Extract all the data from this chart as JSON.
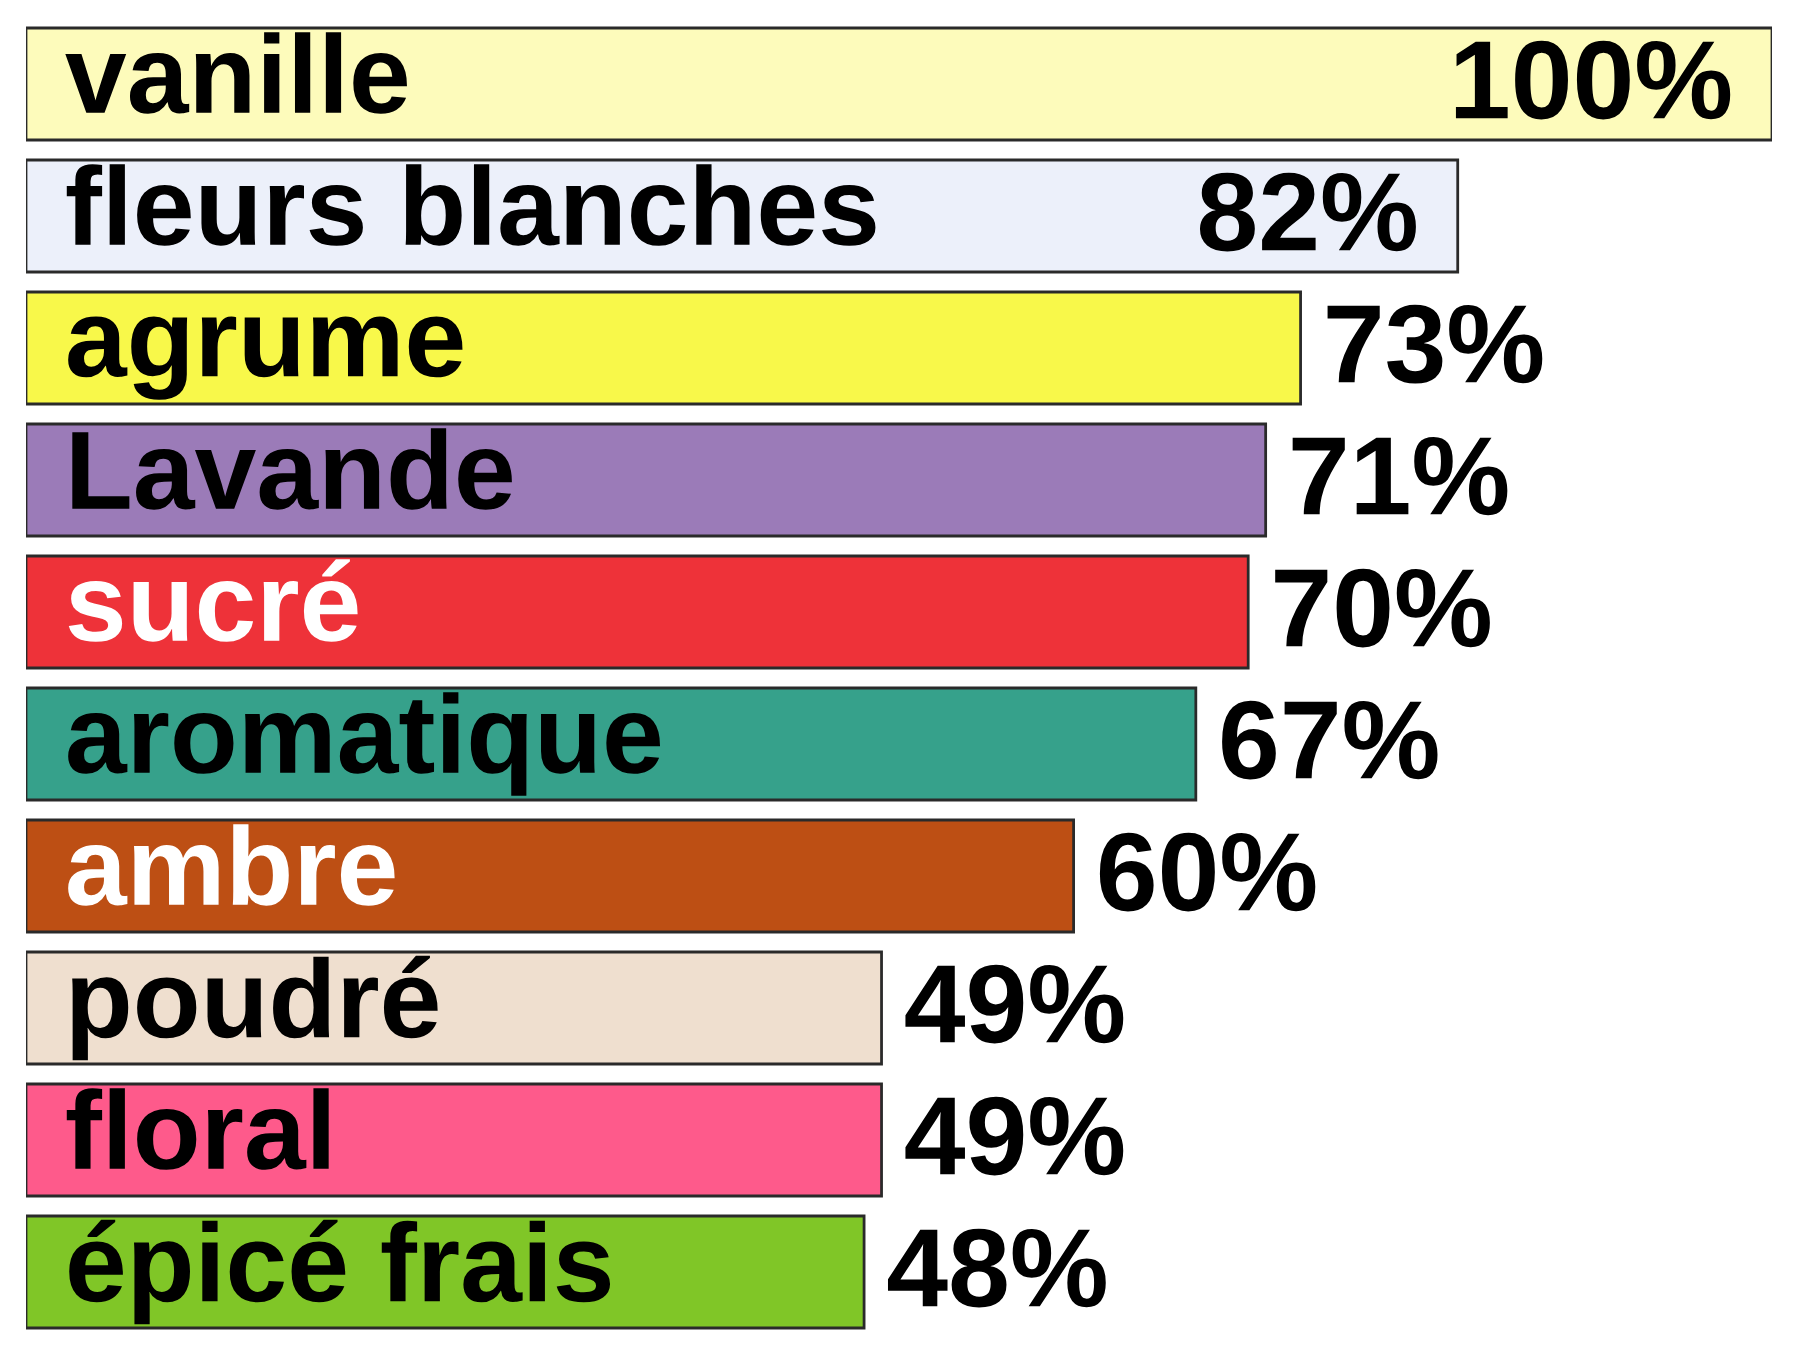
{
  "chart_data": {
    "type": "bar",
    "orientation": "horizontal",
    "tick_labels": false,
    "categories": [
      "vanille",
      "fleurs blanches",
      "agrume",
      "Lavande",
      "sucré",
      "aromatique",
      "ambre",
      "poudré",
      "floral",
      "épicé frais"
    ],
    "values": [
      100,
      82,
      73,
      71,
      70,
      67,
      60,
      49,
      49,
      48
    ],
    "colors": [
      "#fdfbbb",
      "#ecf0fa",
      "#f8f84a",
      "#9b7bb8",
      "#ee3239",
      "#36a18b",
      "#bd4f14",
      "#efdfcf",
      "#fe5a8b",
      "#80c627"
    ],
    "value_labels": [
      "100%",
      "82%",
      "73%",
      "71%",
      "70%",
      "67%",
      "60%",
      "49%",
      "49%",
      "48%"
    ]
  }
}
